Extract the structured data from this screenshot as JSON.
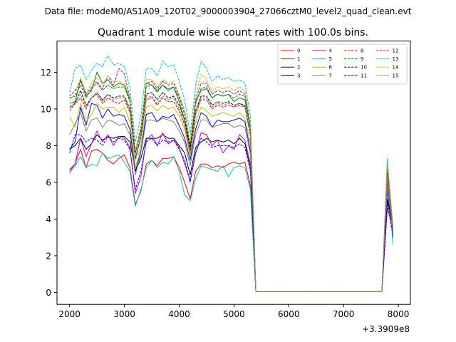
{
  "header": {
    "data_file": "Data file: modeM0/AS1A09_120T02_9000003904_27066cztM0_level2_quad_clean.evt"
  },
  "chart_data": {
    "type": "line",
    "title": "Quadrant 1 module wise count rates with 100.0s bins.",
    "xlabel": "",
    "ylabel": "",
    "x_offset_label": "+3.3909e8",
    "xlim": [
      1770,
      8220
    ],
    "ylim": [
      -0.65,
      13.7
    ],
    "x_ticks": [
      2000,
      3000,
      4000,
      5000,
      6000,
      7000,
      8000
    ],
    "y_ticks": [
      0,
      2,
      4,
      6,
      8,
      10,
      12
    ],
    "grid": false,
    "legend_position": "top-right",
    "legend_columns": 4,
    "x": [
      2000,
      2100,
      2200,
      2300,
      2400,
      2500,
      2600,
      2700,
      2800,
      2900,
      3000,
      3100,
      3200,
      3300,
      3400,
      3500,
      3600,
      3700,
      3800,
      3900,
      4000,
      4100,
      4200,
      4300,
      4400,
      4500,
      4600,
      4700,
      4800,
      4900,
      5000,
      5100,
      5200,
      5300,
      5400,
      7700,
      7800,
      7900
    ],
    "series": [
      {
        "name": "0",
        "color": "#ff0000",
        "style": "solid",
        "values": [
          6.6,
          7.0,
          7.8,
          6.8,
          7.7,
          7.8,
          7.6,
          7.2,
          7.0,
          7.3,
          7.5,
          6.8,
          4.8,
          5.5,
          7.0,
          7.2,
          6.9,
          7.3,
          7.3,
          7.4,
          6.8,
          6.0,
          5.1,
          6.6,
          7.0,
          7.0,
          6.8,
          6.9,
          6.8,
          7.0,
          7.1,
          7.0,
          7.1,
          5.8,
          0.05,
          0.05,
          6.0,
          3.0
        ]
      },
      {
        "name": "1",
        "color": "#008000",
        "style": "solid",
        "values": [
          10.3,
          10.4,
          11.6,
          10.7,
          11.0,
          12.0,
          11.4,
          11.6,
          11.2,
          11.4,
          11.3,
          10.5,
          7.6,
          8.8,
          11.4,
          11.3,
          11.0,
          11.3,
          11.0,
          11.2,
          10.4,
          9.4,
          7.9,
          10.4,
          11.0,
          11.1,
          10.6,
          10.8,
          10.7,
          10.8,
          10.4,
          10.6,
          10.5,
          8.9,
          0.05,
          0.05,
          6.5,
          3.3
        ]
      },
      {
        "name": "2",
        "color": "#0000ff",
        "style": "solid",
        "values": [
          7.8,
          8.2,
          10.1,
          9.1,
          10.3,
          10.2,
          9.5,
          10.0,
          9.6,
          9.7,
          9.6,
          8.9,
          6.6,
          7.7,
          9.7,
          9.8,
          9.3,
          9.6,
          9.5,
          9.7,
          9.1,
          8.4,
          7.2,
          8.9,
          9.8,
          9.6,
          9.0,
          9.4,
          9.3,
          9.3,
          9.4,
          9.5,
          9.3,
          7.7,
          0.05,
          0.05,
          5.6,
          3.0
        ]
      },
      {
        "name": "3",
        "color": "#000000",
        "style": "solid",
        "values": [
          7.8,
          8.0,
          8.4,
          7.8,
          8.1,
          8.6,
          8.3,
          8.5,
          8.4,
          8.5,
          8.5,
          8.2,
          6.6,
          7.3,
          8.4,
          8.4,
          8.4,
          8.6,
          8.4,
          8.4,
          8.0,
          7.6,
          6.4,
          7.9,
          8.2,
          8.4,
          8.2,
          8.3,
          8.2,
          8.3,
          8.1,
          8.4,
          8.1,
          6.8,
          0.05,
          0.05,
          5.1,
          3.5
        ]
      },
      {
        "name": "4",
        "color": "#bf00bf",
        "style": "solid",
        "values": [
          6.7,
          7.0,
          8.4,
          7.4,
          8.1,
          8.8,
          8.2,
          8.6,
          8.0,
          8.5,
          8.4,
          7.9,
          5.4,
          6.3,
          8.3,
          8.6,
          8.0,
          8.7,
          8.1,
          8.3,
          7.9,
          7.0,
          6.1,
          7.6,
          8.7,
          8.6,
          8.0,
          8.3,
          7.6,
          8.0,
          7.8,
          8.6,
          8.3,
          7.0,
          0.05,
          0.05,
          4.6,
          3.5
        ]
      },
      {
        "name": "5",
        "color": "#00bfbf",
        "style": "solid",
        "values": [
          6.5,
          6.9,
          7.4,
          6.8,
          7.0,
          6.9,
          7.6,
          7.3,
          7.4,
          7.5,
          7.1,
          6.6,
          4.7,
          5.6,
          6.8,
          7.2,
          6.8,
          7.1,
          7.0,
          7.4,
          6.6,
          5.3,
          5.0,
          6.2,
          6.9,
          6.8,
          6.7,
          6.6,
          6.9,
          6.3,
          6.8,
          6.9,
          6.8,
          5.6,
          0.05,
          0.05,
          7.3,
          2.6
        ]
      },
      {
        "name": "6",
        "color": "#bfbf00",
        "style": "solid",
        "values": [
          9.6,
          9.0,
          10.3,
          9.3,
          9.7,
          10.3,
          10.0,
          10.1,
          10.1,
          9.8,
          10.1,
          9.3,
          6.8,
          8.0,
          10.1,
          10.2,
          9.9,
          10.2,
          10.0,
          10.1,
          9.6,
          8.9,
          7.4,
          9.3,
          10.1,
          9.9,
          9.6,
          9.7,
          9.8,
          9.7,
          9.6,
          9.8,
          9.5,
          8.1,
          0.05,
          0.05,
          6.3,
          3.6
        ]
      },
      {
        "name": "7",
        "color": "#808080",
        "style": "solid",
        "values": [
          8.6,
          9.2,
          9.8,
          8.8,
          9.4,
          9.5,
          9.0,
          9.4,
          9.3,
          9.1,
          9.2,
          8.6,
          6.4,
          7.6,
          9.4,
          9.4,
          9.3,
          9.5,
          9.4,
          9.3,
          8.8,
          8.2,
          6.9,
          8.6,
          9.4,
          9.4,
          9.0,
          9.1,
          9.2,
          9.2,
          9.0,
          9.1,
          9.0,
          7.5,
          0.05,
          0.05,
          5.8,
          3.3
        ]
      },
      {
        "name": "8",
        "color": "#ff0000",
        "style": "dashed",
        "values": [
          9.9,
          10.3,
          10.6,
          10.0,
          10.6,
          10.8,
          10.3,
          10.6,
          10.4,
          10.3,
          10.5,
          9.8,
          7.3,
          8.4,
          10.5,
          10.6,
          10.2,
          10.6,
          10.4,
          10.4,
          9.9,
          9.1,
          7.6,
          9.7,
          10.5,
          10.5,
          10.0,
          10.2,
          10.1,
          10.2,
          10.1,
          10.2,
          10.1,
          8.5,
          0.05,
          0.05,
          6.4,
          3.4
        ]
      },
      {
        "name": "9",
        "color": "#008000",
        "style": "dashed",
        "values": [
          10.6,
          10.7,
          11.3,
          10.6,
          11.1,
          11.4,
          11.0,
          11.3,
          11.1,
          11.2,
          11.2,
          10.4,
          7.6,
          8.8,
          11.2,
          11.3,
          10.9,
          11.3,
          11.1,
          11.2,
          10.6,
          9.7,
          8.0,
          10.3,
          11.1,
          11.2,
          10.6,
          10.8,
          10.7,
          10.8,
          10.6,
          10.8,
          10.7,
          9.0,
          0.05,
          0.05,
          6.8,
          3.5
        ]
      },
      {
        "name": "10",
        "color": "#0000ff",
        "style": "dashed",
        "values": [
          7.6,
          8.6,
          8.6,
          8.2,
          8.4,
          8.3,
          8.0,
          8.5,
          8.2,
          8.4,
          8.3,
          7.8,
          5.6,
          6.6,
          8.2,
          8.4,
          8.0,
          8.3,
          8.2,
          8.3,
          7.8,
          7.2,
          6.0,
          7.6,
          8.4,
          8.2,
          7.9,
          8.0,
          8.0,
          8.0,
          7.9,
          8.1,
          7.9,
          6.6,
          0.05,
          0.05,
          4.9,
          3.1
        ]
      },
      {
        "name": "11",
        "color": "#000000",
        "style": "dashed",
        "values": [
          10.1,
          10.3,
          11.0,
          10.2,
          10.6,
          10.9,
          10.5,
          10.8,
          10.6,
          10.7,
          10.7,
          10.0,
          7.3,
          8.5,
          10.8,
          10.9,
          10.5,
          10.9,
          10.6,
          10.7,
          10.2,
          9.4,
          7.8,
          9.9,
          10.7,
          10.7,
          10.2,
          10.4,
          10.3,
          10.4,
          10.2,
          10.3,
          10.2,
          8.6,
          0.05,
          0.05,
          6.5,
          3.5
        ]
      },
      {
        "name": "12",
        "color": "#bf00bf",
        "style": "dashed",
        "values": [
          10.7,
          11.0,
          11.5,
          10.8,
          11.2,
          11.5,
          11.1,
          11.8,
          11.3,
          12.2,
          11.9,
          10.6,
          7.7,
          9.0,
          11.4,
          11.5,
          11.1,
          11.5,
          11.3,
          11.4,
          10.7,
          9.9,
          8.1,
          10.5,
          11.4,
          11.4,
          10.8,
          11.0,
          10.9,
          11.0,
          10.8,
          11.0,
          10.8,
          9.1,
          0.05,
          0.05,
          6.9,
          3.6
        ]
      },
      {
        "name": "13",
        "color": "#00bfbf",
        "style": "dashed",
        "values": [
          10.9,
          12.2,
          12.4,
          11.6,
          12.1,
          12.5,
          12.3,
          12.9,
          12.4,
          12.5,
          12.3,
          11.2,
          8.2,
          9.6,
          12.2,
          12.2,
          11.8,
          12.6,
          12.3,
          12.4,
          11.5,
          10.5,
          8.6,
          11.3,
          12.6,
          12.2,
          11.5,
          11.8,
          11.6,
          11.7,
          11.5,
          11.6,
          11.4,
          9.6,
          0.05,
          0.05,
          7.2,
          3.7
        ]
      },
      {
        "name": "14",
        "color": "#bfbf00",
        "style": "dashed",
        "values": [
          10.5,
          10.8,
          11.7,
          10.9,
          11.4,
          11.7,
          11.3,
          11.8,
          11.5,
          11.5,
          11.4,
          10.6,
          7.7,
          8.9,
          11.6,
          11.6,
          11.2,
          11.6,
          11.4,
          11.5,
          10.8,
          9.9,
          8.2,
          10.7,
          11.9,
          11.6,
          11.0,
          11.2,
          11.1,
          11.2,
          11.0,
          11.2,
          11.0,
          9.2,
          0.05,
          0.05,
          7.0,
          3.6
        ]
      },
      {
        "name": "15",
        "color": "#808080",
        "style": "dashed",
        "values": [
          9.9,
          10.4,
          10.8,
          10.1,
          10.6,
          10.9,
          10.4,
          10.8,
          10.5,
          10.6,
          10.6,
          9.9,
          7.2,
          8.4,
          10.6,
          10.7,
          10.3,
          10.7,
          10.5,
          10.6,
          10.0,
          9.2,
          7.6,
          9.8,
          10.6,
          10.6,
          10.1,
          10.3,
          10.2,
          10.3,
          10.1,
          10.3,
          10.1,
          8.5,
          0.05,
          0.05,
          6.4,
          3.4
        ]
      }
    ]
  }
}
